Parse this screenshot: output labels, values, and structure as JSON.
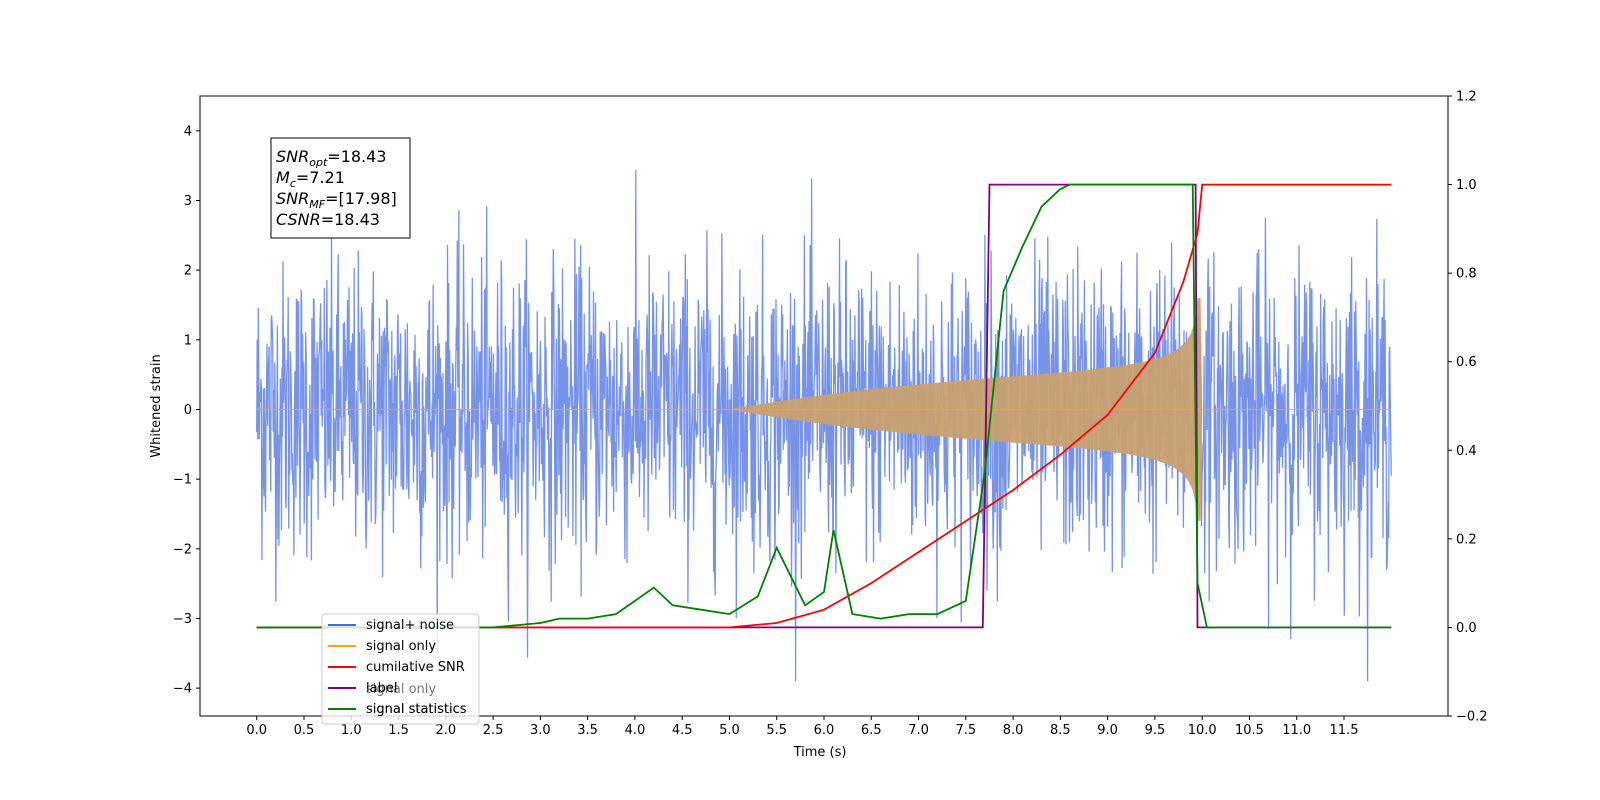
{
  "chart_data": {
    "type": "line",
    "xlabel": "Time (s)",
    "ylabel_left": "Whitened strain",
    "xlim": [
      -0.6,
      12.6
    ],
    "ylim_left": [
      -4.4,
      4.5
    ],
    "ylim_right": [
      -0.2,
      1.2
    ],
    "x_ticks": [
      "0.0",
      "0.5",
      "1.0",
      "1.5",
      "2.0",
      "2.5",
      "3.0",
      "3.5",
      "4.0",
      "4.5",
      "5.0",
      "5.5",
      "6.0",
      "6.5",
      "7.0",
      "7.5",
      "8.0",
      "8.5",
      "9.0",
      "9.5",
      "10.0",
      "10.5",
      "11.0",
      "11.5"
    ],
    "y_ticks_left": [
      -4,
      -3,
      -2,
      -1,
      0,
      1,
      2,
      3,
      4
    ],
    "y_ticks_right": [
      "−0.2",
      "0.0",
      "0.2",
      "0.4",
      "0.6",
      "0.8",
      "1.0",
      "1.2"
    ],
    "grid": false,
    "legend_position": "lower-left",
    "legend": [
      {
        "label": "signal+ noise",
        "color": "#4169e1"
      },
      {
        "label": "signal only",
        "color": "#ffa500"
      },
      {
        "label": "cumilative SNR",
        "color": "#ff0000"
      },
      {
        "label": "label",
        "color": "#800080"
      },
      {
        "label": "signal statistics",
        "color": "#008000"
      }
    ],
    "legend_occluded_text": [
      "signal only",
      "signal statistics"
    ],
    "annotation": [
      {
        "main": "SNR",
        "sub": "opt",
        "rest": "=18.43"
      },
      {
        "main": "M",
        "sub": "c",
        "rest": "=7.21"
      },
      {
        "main": "SNR",
        "sub": "MF",
        "rest": "=[17.98]"
      },
      {
        "main": "CSNR",
        "sub": "",
        "rest": "=18.43"
      }
    ],
    "series": {
      "noise": {
        "axis": "left",
        "x_range": [
          0.0,
          12.0
        ],
        "amplitude": 1.05,
        "color": "#4169e1"
      },
      "signal": {
        "axis": "left",
        "start": 5.0,
        "peak_time": 9.95,
        "end": 10.0,
        "peak_amplitude": 1.6,
        "color": "#ffa500"
      },
      "cumulative_snr": {
        "axis": "right",
        "x": [
          0.0,
          4.8,
          5.0,
          5.5,
          6.0,
          6.5,
          7.0,
          7.5,
          8.0,
          8.5,
          9.0,
          9.5,
          9.8,
          9.95,
          10.0,
          12.0
        ],
        "y": [
          0.0,
          0.0,
          0.0,
          0.01,
          0.04,
          0.1,
          0.17,
          0.24,
          0.31,
          0.39,
          0.48,
          0.62,
          0.78,
          0.89,
          1.0,
          1.0
        ],
        "color": "#ff0000"
      },
      "label": {
        "axis": "right",
        "x": [
          0.0,
          7.68,
          7.75,
          9.93,
          9.95,
          12.0
        ],
        "y": [
          0.0,
          0.0,
          1.0,
          1.0,
          0.0,
          0.0
        ],
        "color": "#800080"
      },
      "signal_statistics": {
        "axis": "right",
        "x": [
          0.0,
          2.5,
          3.0,
          3.2,
          3.5,
          3.8,
          4.0,
          4.2,
          4.4,
          4.7,
          5.0,
          5.3,
          5.5,
          5.8,
          6.0,
          6.1,
          6.3,
          6.6,
          6.9,
          7.2,
          7.5,
          7.7,
          7.9,
          8.1,
          8.3,
          8.5,
          8.6,
          9.9,
          9.95,
          10.05,
          12.0
        ],
        "y": [
          0.0,
          0.0,
          0.01,
          0.02,
          0.02,
          0.03,
          0.06,
          0.09,
          0.05,
          0.04,
          0.03,
          0.07,
          0.18,
          0.05,
          0.08,
          0.22,
          0.03,
          0.02,
          0.03,
          0.03,
          0.06,
          0.35,
          0.76,
          0.86,
          0.95,
          0.99,
          1.0,
          1.0,
          0.1,
          0.0,
          0.0
        ],
        "color": "#008000"
      }
    }
  }
}
